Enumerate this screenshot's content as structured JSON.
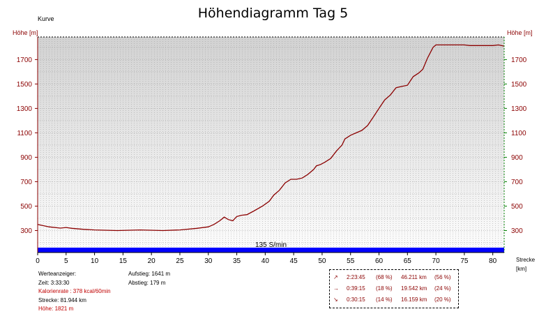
{
  "chart_data": {
    "type": "area",
    "title": "Höhendiagramm Tag 5",
    "subtitle": "Kurve",
    "ylabel_left": "Höhe [m]",
    "ylabel_right": "Höhe [m]",
    "xlabel": "Strecke",
    "xunit": "[km]",
    "xlim": [
      0,
      82
    ],
    "ylim": [
      120,
      1885
    ],
    "y_ticks": [
      300,
      500,
      700,
      900,
      1100,
      1300,
      1500,
      1700
    ],
    "x_ticks": [
      0,
      5,
      10,
      15,
      20,
      25,
      30,
      35,
      40,
      45,
      50,
      55,
      60,
      65,
      70,
      75,
      80
    ],
    "band_label": "135 S/min",
    "series": [
      {
        "x": [
          0,
          2,
          4,
          5,
          6,
          8,
          10,
          14,
          18,
          22,
          25,
          28,
          30,
          31,
          32,
          32.8,
          33.5,
          34.3,
          35,
          35.8,
          36.8,
          38,
          39.5,
          40.7,
          41.5,
          42.5,
          43.5,
          44.5,
          45.5,
          46.5,
          47.5,
          48.5,
          49,
          49.7,
          50.5,
          51.5,
          52.5,
          53.5,
          54,
          55,
          56,
          57,
          58,
          59,
          60,
          61,
          62,
          63,
          64,
          65,
          66,
          67,
          67.7,
          68.5,
          69.5,
          70,
          71,
          73,
          75,
          76,
          78,
          80,
          81,
          82
        ],
        "y": [
          350,
          330,
          320,
          325,
          318,
          310,
          305,
          300,
          305,
          300,
          305,
          318,
          330,
          350,
          380,
          410,
          390,
          380,
          415,
          425,
          430,
          460,
          500,
          540,
          590,
          630,
          690,
          720,
          720,
          730,
          760,
          800,
          830,
          840,
          860,
          890,
          950,
          1000,
          1050,
          1080,
          1100,
          1120,
          1160,
          1230,
          1300,
          1370,
          1410,
          1470,
          1480,
          1490,
          1560,
          1590,
          1620,
          1710,
          1800,
          1820,
          1820,
          1820,
          1820,
          1815,
          1815,
          1815,
          1820,
          1810
        ]
      }
    ]
  },
  "info_left": {
    "header": "Werteanzeiger:",
    "zeit": "Zeit: 3:33:30",
    "kalorien": "Kalorienrate : 378 kcal/60min",
    "strecke": "Strecke: 81.944 km",
    "hoehe": "Höhe: 1821 m"
  },
  "info_mid": {
    "aufstieg": "Aufstieg: 1641 m",
    "abstieg": "Abstieg: 179 m"
  },
  "stats": [
    {
      "icon": "↗",
      "time": "2:23:45",
      "time_pct": "(68 %)",
      "dist": "46.211 km",
      "dist_pct": "(56 %)"
    },
    {
      "icon": "→",
      "time": "0:39:15",
      "time_pct": "(18 %)",
      "dist": "19.542 km",
      "dist_pct": "(24 %)"
    },
    {
      "icon": "↘",
      "time": "0:30:15",
      "time_pct": "(14 %)",
      "dist": "16.159 km",
      "dist_pct": "(20 %)"
    }
  ],
  "colors": {
    "line": "#8b0000",
    "band": "#0000ff",
    "grid": "#999999",
    "left_axis": "#8b0000",
    "right_axis": "#008000"
  }
}
